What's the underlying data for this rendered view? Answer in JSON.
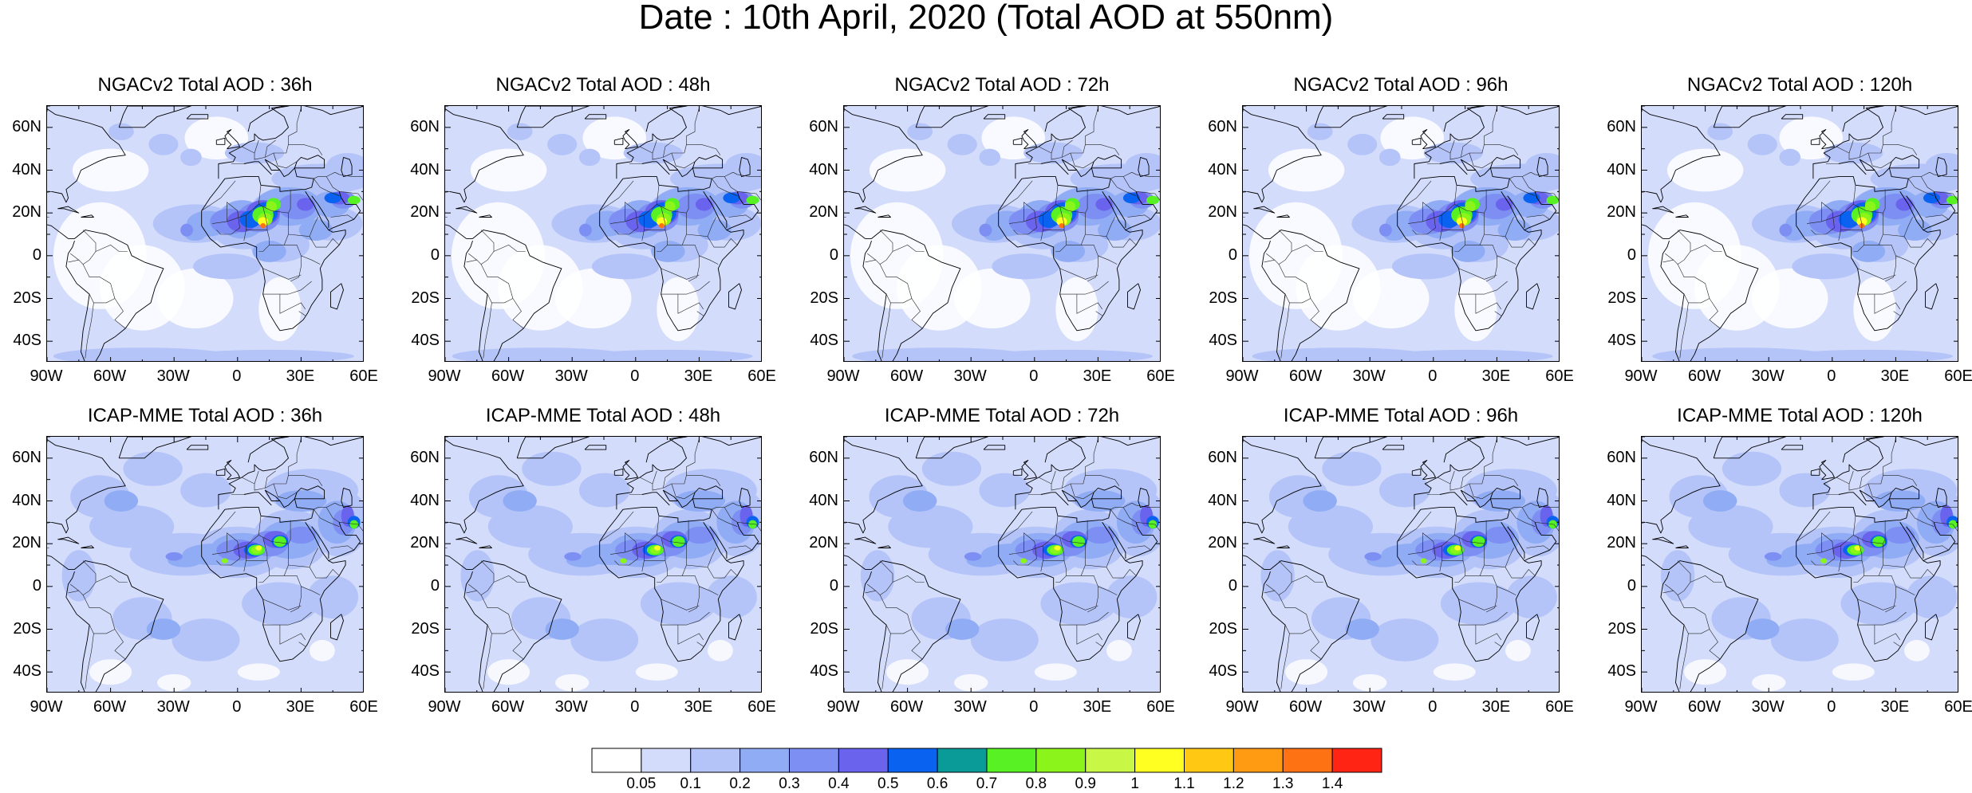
{
  "title": "Date : 10th April, 2020 (Total AOD at 550nm)",
  "lat_ticks": [
    "60N",
    "40N",
    "20N",
    "0",
    "20S",
    "40S"
  ],
  "lon_ticks": [
    "90W",
    "60W",
    "30W",
    "0",
    "30E",
    "60E"
  ],
  "map_extent": {
    "lon": [
      -90,
      60
    ],
    "lat": [
      -50,
      70
    ]
  },
  "panels": [
    {
      "title": "NGACv2 Total AOD : 36h",
      "model": "ngac",
      "lead": 36
    },
    {
      "title": "NGACv2 Total AOD : 48h",
      "model": "ngac",
      "lead": 48
    },
    {
      "title": "NGACv2 Total AOD : 72h",
      "model": "ngac",
      "lead": 72
    },
    {
      "title": "NGACv2 Total AOD : 96h",
      "model": "ngac",
      "lead": 96
    },
    {
      "title": "NGACv2 Total AOD : 120h",
      "model": "ngac",
      "lead": 120
    },
    {
      "title": "ICAP-MME Total AOD : 36h",
      "model": "icap",
      "lead": 36
    },
    {
      "title": "ICAP-MME Total AOD : 48h",
      "model": "icap",
      "lead": 48
    },
    {
      "title": "ICAP-MME Total AOD : 72h",
      "model": "icap",
      "lead": 72
    },
    {
      "title": "ICAP-MME Total AOD : 96h",
      "model": "icap",
      "lead": 96
    },
    {
      "title": "ICAP-MME Total AOD : 120h",
      "model": "icap",
      "lead": 120
    }
  ],
  "colorbar": {
    "labels": [
      "0.05",
      "0.1",
      "0.2",
      "0.3",
      "0.4",
      "0.5",
      "0.6",
      "0.7",
      "0.8",
      "0.9",
      "1",
      "1.1",
      "1.2",
      "1.3",
      "1.4"
    ],
    "colors": [
      "#ffffff",
      "#d3dcfb",
      "#b4c3f8",
      "#90acf5",
      "#7e8ff3",
      "#6a63ee",
      "#0a63f0",
      "#0a9a98",
      "#58f224",
      "#8bf51b",
      "#c8f745",
      "#ffff22",
      "#ffc813",
      "#ff9b12",
      "#ff7213",
      "#ff2413"
    ]
  }
}
